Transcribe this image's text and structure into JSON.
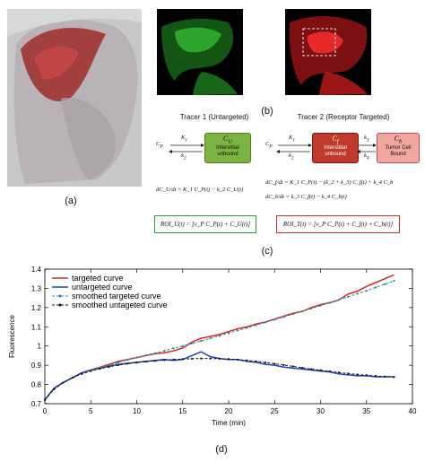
{
  "panels": {
    "a": "(a)",
    "b": "(b)",
    "c": "(c)",
    "d": "(d)"
  },
  "model": {
    "tracer1": {
      "title": "Tracer 1 (Untargeted)",
      "input": "C",
      "input_sub": "P",
      "k1": "K",
      "k1_sub": "1",
      "k2": "k",
      "k2_sub": "2",
      "box_symbol": "C",
      "box_sub": "U",
      "box_line1": "Interstitial",
      "box_line2": "unbound",
      "box_color": "#7cb342",
      "equation": "dC_U/dt = K_1 C_P(t) − k_2 C_U(t)",
      "roi": "ROI_U(t) = [v_P C_P(t) + C_U(t)]",
      "roi_color": "#2e9e3a"
    },
    "tracer2": {
      "title": "Tracer 2 (Receptor Targeted)",
      "input": "C",
      "input_sub": "P",
      "k1": "K",
      "k1_sub": "1",
      "k2": "k",
      "k2_sub": "2",
      "k3": "k",
      "k3_sub": "3",
      "k4": "k",
      "k4_sub": "4",
      "box1_symbol": "C",
      "box1_sub": "f",
      "box1_line1": "Interstitial",
      "box1_line2": "unbound",
      "box1_color": "#c0392b",
      "box2_symbol": "C",
      "box2_sub": "b",
      "box2_line1": "Tumor Cell",
      "box2_line2": "Bound",
      "box2_color": "#f2a6a0",
      "equation1": "dC_f/dt = K_1 C_P(t) − (k_2 + k_3) C_f(t) + k_4 C_b",
      "equation2": "dC_b/dt = k_3 C_f(t) − k_4 C_b(t)",
      "roi": "ROI_T(t) = [v_P C_P(t) + C_f(t) + C_b(t)]",
      "roi_color": "#d62c2c"
    }
  },
  "chart_data": {
    "type": "line",
    "xlabel": "Time (min)",
    "ylabel": "Fluorescence",
    "xlim": [
      0,
      40
    ],
    "ylim": [
      0.7,
      1.4
    ],
    "xticks": [
      0,
      5,
      10,
      15,
      20,
      25,
      30,
      35,
      40
    ],
    "yticks": [
      0.7,
      0.8,
      0.9,
      1.0,
      1.1,
      1.2,
      1.3,
      1.4
    ],
    "xtick_labels": [
      "0",
      "5",
      "10",
      "15",
      "20",
      "25",
      "30",
      "35",
      "40"
    ],
    "ytick_labels": [
      "0.7",
      "0.8",
      "0.9",
      "1",
      "1.1",
      "1.2",
      "1.3",
      "1.4"
    ],
    "legend_position": "top-left",
    "x": [
      0,
      1,
      2,
      3,
      4,
      5,
      6,
      7,
      8,
      9,
      10,
      11,
      12,
      13,
      14,
      15,
      16,
      17,
      18,
      19,
      20,
      21,
      22,
      23,
      24,
      25,
      26,
      27,
      28,
      29,
      30,
      31,
      32,
      33,
      34,
      35,
      36,
      37,
      38
    ],
    "series": [
      {
        "name": "targeted curve",
        "color": "#d62728",
        "dash": "solid",
        "marker": "none",
        "values": [
          0.72,
          0.78,
          0.81,
          0.835,
          0.86,
          0.875,
          0.89,
          0.905,
          0.92,
          0.93,
          0.94,
          0.95,
          0.96,
          0.965,
          0.975,
          0.99,
          1.02,
          1.04,
          1.05,
          1.06,
          1.075,
          1.09,
          1.1,
          1.115,
          1.125,
          1.14,
          1.155,
          1.17,
          1.18,
          1.2,
          1.215,
          1.225,
          1.24,
          1.27,
          1.285,
          1.31,
          1.33,
          1.35,
          1.37
        ]
      },
      {
        "name": "untargeted curve",
        "color": "#1f3fbf",
        "dash": "solid",
        "marker": "none",
        "values": [
          0.72,
          0.78,
          0.81,
          0.835,
          0.86,
          0.875,
          0.885,
          0.895,
          0.905,
          0.91,
          0.915,
          0.92,
          0.925,
          0.93,
          0.925,
          0.93,
          0.95,
          0.97,
          0.945,
          0.935,
          0.93,
          0.93,
          0.92,
          0.915,
          0.905,
          0.9,
          0.89,
          0.885,
          0.88,
          0.875,
          0.87,
          0.865,
          0.855,
          0.85,
          0.845,
          0.845,
          0.84,
          0.84,
          0.84
        ]
      },
      {
        "name": "smoothed targeted curve",
        "color": "#2a8c8c",
        "dash": "dashed",
        "marker": "circle",
        "values": [
          0.72,
          0.775,
          0.81,
          0.835,
          0.855,
          0.872,
          0.887,
          0.9,
          0.915,
          0.928,
          0.94,
          0.952,
          0.963,
          0.975,
          0.988,
          1.0,
          1.013,
          1.026,
          1.04,
          1.053,
          1.067,
          1.081,
          1.095,
          1.109,
          1.123,
          1.137,
          1.151,
          1.166,
          1.18,
          1.195,
          1.21,
          1.225,
          1.24,
          1.256,
          1.272,
          1.288,
          1.305,
          1.322,
          1.34
        ]
      },
      {
        "name": "smoothed untageted curve",
        "color": "#111111",
        "dash": "dashed",
        "marker": "circle",
        "values": [
          0.72,
          0.775,
          0.81,
          0.835,
          0.855,
          0.87,
          0.882,
          0.892,
          0.901,
          0.908,
          0.914,
          0.919,
          0.923,
          0.927,
          0.93,
          0.932,
          0.934,
          0.935,
          0.935,
          0.934,
          0.932,
          0.929,
          0.925,
          0.92,
          0.914,
          0.908,
          0.901,
          0.894,
          0.887,
          0.88,
          0.874,
          0.868,
          0.862,
          0.857,
          0.852,
          0.848,
          0.844,
          0.841,
          0.839
        ]
      }
    ]
  }
}
